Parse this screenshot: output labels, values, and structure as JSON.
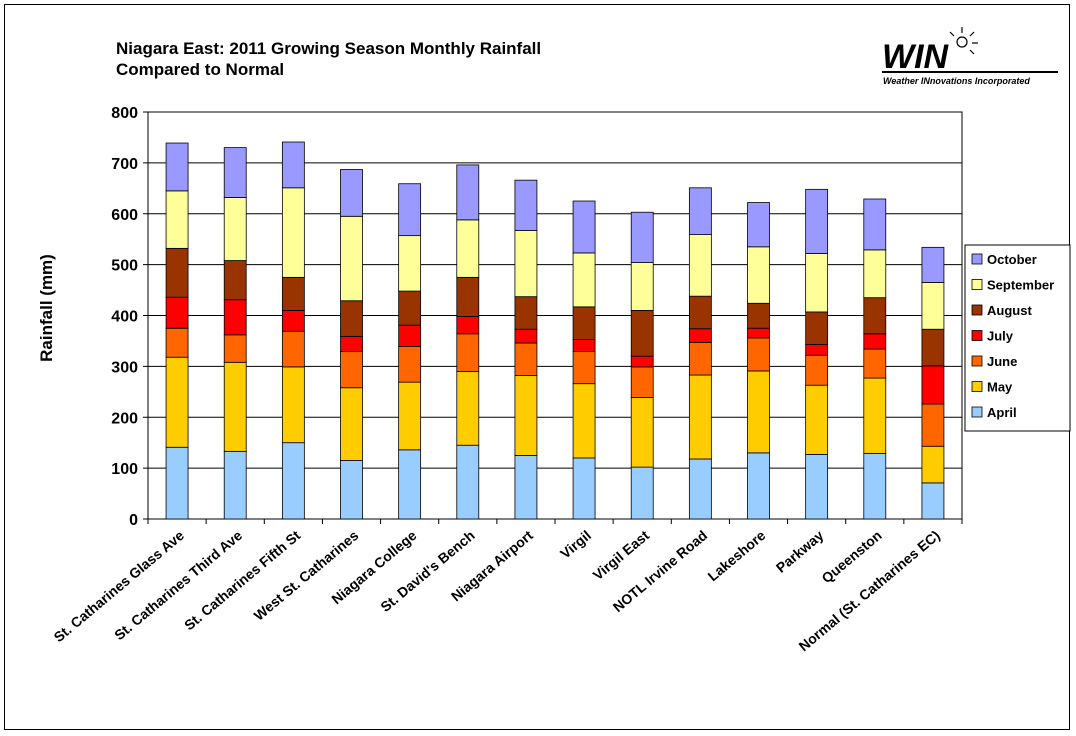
{
  "title": {
    "line1": "Niagara East: 2011 Growing Season Monthly Rainfall",
    "line2": "Compared to Normal"
  },
  "logo": {
    "wordmark": "WIN",
    "tagline": "Weather INnovations Incorporated"
  },
  "colors": {
    "April": "#99CCFF",
    "May": "#FFCC00",
    "June": "#FF6600",
    "July": "#FF0000",
    "August": "#993300",
    "September": "#FFFF99",
    "October": "#9999FF"
  },
  "chart_data": {
    "type": "bar",
    "stacked": true,
    "title": "Niagara East: 2011 Growing Season Monthly Rainfall Compared to Normal",
    "xlabel": "",
    "ylabel": "Rainfall (mm)",
    "ylim": [
      0,
      800
    ],
    "yticks": [
      0,
      100,
      200,
      300,
      400,
      500,
      600,
      700,
      800
    ],
    "grid": "horizontal",
    "legend_position": "right",
    "categories": [
      "St. Catharines Glass Ave",
      "St. Catharines Third Ave",
      "St. Catharines Fifth St",
      "West St. Catharines",
      "Niagara College",
      "St. David's Bench",
      "Niagara Airport",
      "Virgil",
      "Virgil East",
      "NOTL Irvine Road",
      "Lakeshore",
      "Parkway",
      "Queenston",
      "Normal (St. Catharines EC)"
    ],
    "series": [
      {
        "name": "April",
        "values": [
          141,
          133,
          150,
          115,
          136,
          145,
          125,
          120,
          102,
          118,
          130,
          127,
          129,
          71
        ]
      },
      {
        "name": "May",
        "values": [
          177,
          175,
          149,
          143,
          133,
          145,
          157,
          146,
          137,
          165,
          161,
          136,
          148,
          72
        ]
      },
      {
        "name": "June",
        "values": [
          57,
          54,
          70,
          71,
          70,
          74,
          64,
          63,
          60,
          64,
          65,
          59,
          57,
          83
        ]
      },
      {
        "name": "July",
        "values": [
          61,
          69,
          41,
          30,
          42,
          34,
          27,
          24,
          21,
          27,
          19,
          21,
          30,
          75
        ]
      },
      {
        "name": "August",
        "values": [
          96,
          77,
          65,
          70,
          67,
          77,
          64,
          64,
          90,
          64,
          49,
          64,
          71,
          72
        ]
      },
      {
        "name": "September",
        "values": [
          113,
          124,
          176,
          166,
          109,
          113,
          130,
          106,
          94,
          121,
          111,
          115,
          94,
          92
        ]
      },
      {
        "name": "October",
        "values": [
          94,
          98,
          90,
          92,
          102,
          108,
          99,
          102,
          99,
          92,
          87,
          126,
          100,
          69
        ]
      }
    ]
  }
}
